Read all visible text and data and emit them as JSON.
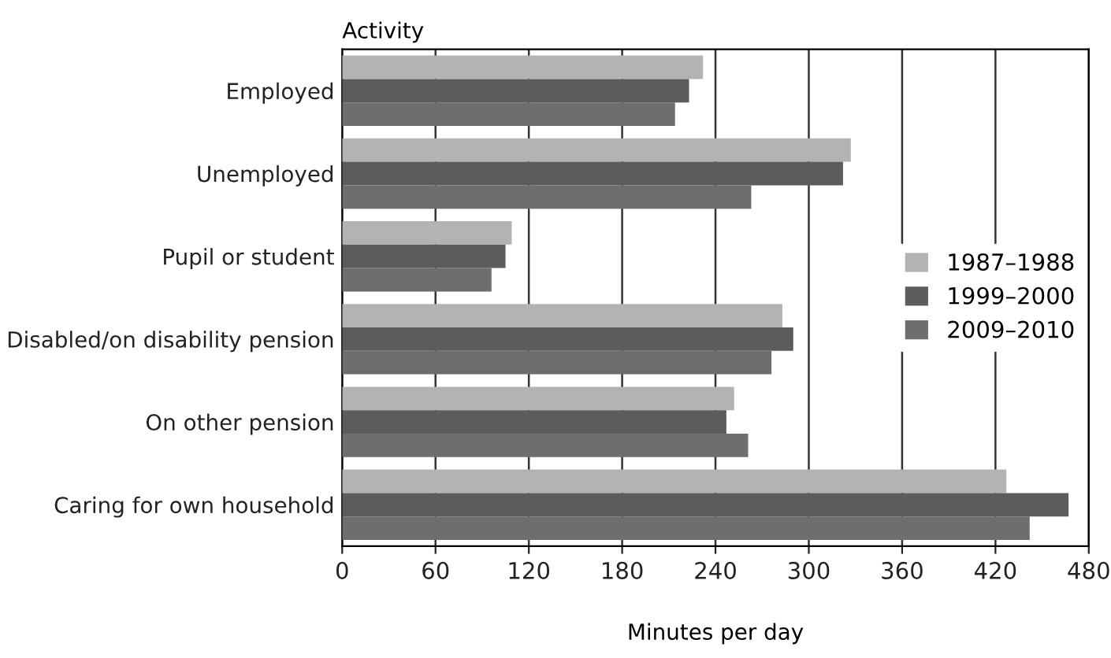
{
  "chart_data": {
    "type": "bar",
    "orientation": "horizontal",
    "ylabel": "Activity",
    "xlabel": "Minutes per day",
    "categories": [
      "Employed",
      "Unemployed",
      "Pupil or student",
      "Disabled/on disability pension",
      "On other pension",
      "Caring for own household"
    ],
    "series": [
      {
        "name": "1987–1988",
        "color": "#b3b3b3",
        "values": [
          232,
          327,
          109,
          283,
          252,
          427
        ]
      },
      {
        "name": "1999–2000",
        "color": "#5c5c5c",
        "values": [
          223,
          322,
          105,
          290,
          247,
          467
        ]
      },
      {
        "name": "2009–2010",
        "color": "#6e6e6e",
        "values": [
          214,
          263,
          96,
          276,
          261,
          442
        ]
      }
    ],
    "xlim": [
      0,
      480
    ],
    "xticks": [
      0,
      60,
      120,
      180,
      240,
      300,
      360,
      420,
      480
    ],
    "grid": "x",
    "legend": "right"
  }
}
